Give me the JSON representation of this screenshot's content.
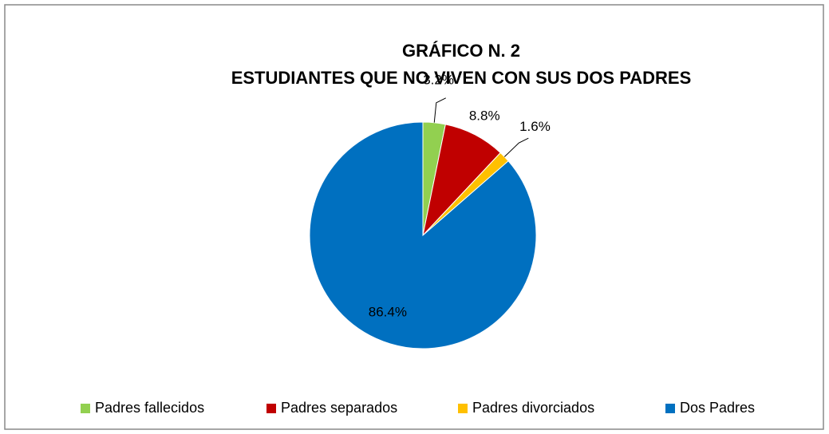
{
  "chart_data": {
    "type": "pie",
    "title": [
      "GRÁFICO N. 2",
      "ESTUDIANTES  QUE NO VIVEN CON SUS DOS PADRES"
    ],
    "categories": [
      "Padres fallecidos",
      "Padres separados",
      "Padres divorciados",
      "Dos Padres"
    ],
    "values": [
      3.2,
      8.8,
      1.6,
      86.4
    ],
    "value_labels": [
      "3.2%",
      "8.8%",
      "1.6%",
      "86.4%"
    ],
    "colors": [
      "#92d050",
      "#c00000",
      "#ffc000",
      "#0070c0"
    ],
    "legend": "bottom"
  }
}
